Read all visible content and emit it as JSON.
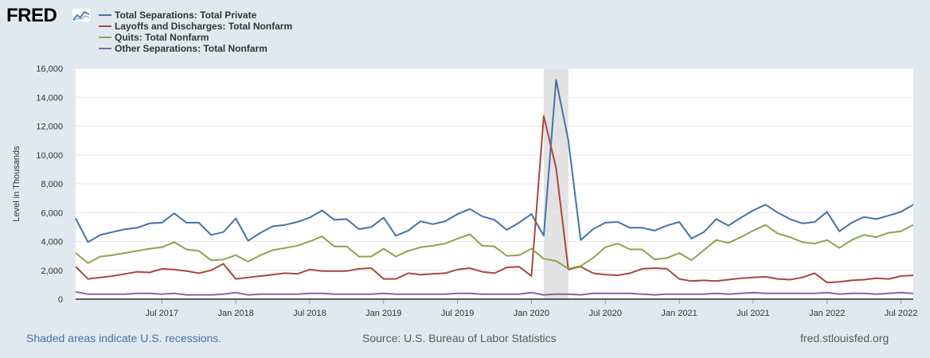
{
  "header": {
    "logo_text": "FRED"
  },
  "colors": {
    "background": "#e1e9f0",
    "plot_background": "#ffffff",
    "recession_shading": "#e2e2e2",
    "grid": "#e6e6e6"
  },
  "chart_data": {
    "type": "line",
    "xlabel": "",
    "ylabel": "Level in Thousands",
    "ylim": [
      0,
      16000
    ],
    "yticks": [
      0,
      2000,
      4000,
      6000,
      8000,
      10000,
      12000,
      14000,
      16000
    ],
    "ytick_labels": [
      "0",
      "2,000",
      "4,000",
      "6,000",
      "8,000",
      "10,000",
      "12,000",
      "14,000",
      "16,000"
    ],
    "x_start": "Dec 2016",
    "x_end": "Aug 2022",
    "xticks": [
      {
        "label": "Jul 2017",
        "index": 7
      },
      {
        "label": "Jan 2018",
        "index": 13
      },
      {
        "label": "Jul 2018",
        "index": 19
      },
      {
        "label": "Jan 2019",
        "index": 25
      },
      {
        "label": "Jul 2019",
        "index": 31
      },
      {
        "label": "Jan 2020",
        "index": 37
      },
      {
        "label": "Jul 2020",
        "index": 43
      },
      {
        "label": "Jan 2021",
        "index": 49
      },
      {
        "label": "Jul 2021",
        "index": 55
      },
      {
        "label": "Jan 2022",
        "index": 61
      },
      {
        "label": "Jul 2022",
        "index": 67
      }
    ],
    "recession": {
      "start_index": 38,
      "end_index": 40,
      "label": "Feb 2020 – Apr 2020"
    },
    "series": [
      {
        "name": "Total Separations: Total Private",
        "color": "#4572a7",
        "values": [
          5600,
          3950,
          4450,
          4650,
          4850,
          4950,
          5250,
          5300,
          5950,
          5300,
          5300,
          4450,
          4650,
          5600,
          4050,
          4600,
          5050,
          5150,
          5350,
          5650,
          6150,
          5500,
          5550,
          4850,
          5000,
          5650,
          4400,
          4750,
          5400,
          5200,
          5400,
          5900,
          6250,
          5750,
          5500,
          4800,
          5300,
          5900,
          4400,
          15200,
          11000,
          4100,
          4850,
          5300,
          5350,
          4950,
          4950,
          4750,
          5100,
          5350,
          4200,
          4650,
          5550,
          5100,
          5650,
          6150,
          6550,
          6000,
          5550,
          5250,
          5350,
          6050,
          4700,
          5300,
          5700,
          5550,
          5800,
          6050,
          6550
        ]
      },
      {
        "name": "Layoffs and Discharges: Total Nonfarm",
        "color": "#aa4643",
        "values": [
          2250,
          1400,
          1500,
          1600,
          1750,
          1900,
          1850,
          2100,
          2050,
          1950,
          1800,
          2000,
          2450,
          1400,
          1500,
          1600,
          1700,
          1800,
          1750,
          2050,
          1950,
          1950,
          1950,
          2100,
          2150,
          1400,
          1400,
          1800,
          1700,
          1750,
          1800,
          2050,
          2150,
          1900,
          1800,
          2200,
          2250,
          1600,
          12700,
          9100,
          2050,
          2250,
          1800,
          1700,
          1650,
          1800,
          2100,
          2150,
          2100,
          1400,
          1250,
          1300,
          1250,
          1350,
          1450,
          1500,
          1550,
          1400,
          1350,
          1500,
          1800,
          1150,
          1200,
          1300,
          1350,
          1450,
          1400,
          1600,
          1650
        ]
      },
      {
        "name": "Quits: Total Nonfarm",
        "color": "#89a54e",
        "values": [
          3200,
          2500,
          2950,
          3050,
          3200,
          3350,
          3500,
          3600,
          3950,
          3450,
          3350,
          2700,
          2750,
          3050,
          2600,
          3050,
          3400,
          3550,
          3700,
          4000,
          4350,
          3650,
          3650,
          2950,
          2950,
          3500,
          2950,
          3350,
          3600,
          3700,
          3850,
          4200,
          4500,
          3700,
          3650,
          3000,
          3050,
          3500,
          2800,
          2650,
          2100,
          2300,
          2850,
          3600,
          3850,
          3450,
          3450,
          2750,
          2850,
          3200,
          2700,
          3400,
          4100,
          3900,
          4300,
          4750,
          5150,
          4550,
          4300,
          3950,
          3850,
          4100,
          3550,
          4100,
          4450,
          4300,
          4600,
          4700,
          5150
        ]
      },
      {
        "name": "Other Separations: Total Nonfarm",
        "color": "#80699b",
        "values": [
          500,
          350,
          350,
          350,
          350,
          400,
          400,
          350,
          400,
          300,
          300,
          300,
          350,
          450,
          300,
          350,
          350,
          350,
          350,
          400,
          400,
          350,
          350,
          350,
          350,
          400,
          350,
          350,
          350,
          350,
          350,
          400,
          400,
          350,
          350,
          350,
          350,
          450,
          300,
          350,
          350,
          300,
          400,
          400,
          400,
          400,
          350,
          300,
          350,
          350,
          350,
          350,
          400,
          350,
          400,
          450,
          400,
          400,
          400,
          400,
          400,
          450,
          350,
          400,
          400,
          350,
          400,
          450,
          400
        ]
      }
    ]
  },
  "footer": {
    "recession_note": "Shaded areas indicate U.S. recessions.",
    "source": "Source: U.S. Bureau of Labor Statistics",
    "site": "fred.stlouisfed.org"
  }
}
